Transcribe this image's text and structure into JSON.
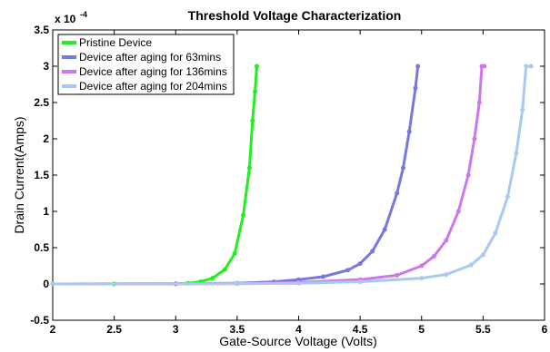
{
  "chart_data": {
    "type": "line",
    "title": "Threshold Voltage Characterization",
    "xlabel": "Gate-Source Voltage (Volts)",
    "ylabel": "Drain Current(Amps)",
    "y_scale_factor": "x 10",
    "y_scale_exponent": "-4",
    "xlim": [
      2,
      6
    ],
    "ylim": [
      -0.5,
      3.5
    ],
    "x_ticks": [
      "2",
      "2.5",
      "3",
      "3.5",
      "4",
      "4.5",
      "5",
      "5.5",
      "6"
    ],
    "y_ticks": [
      "-0.5",
      "0",
      "0.5",
      "1",
      "1.5",
      "2",
      "2.5",
      "3",
      "3.5"
    ],
    "grid": false,
    "legend_position": "top-left",
    "series": [
      {
        "name": "Pristine Device",
        "color": "#22ee22",
        "points": [
          [
            2.0,
            0
          ],
          [
            2.5,
            0
          ],
          [
            3.0,
            0.002
          ],
          [
            3.1,
            0.01
          ],
          [
            3.2,
            0.03
          ],
          [
            3.3,
            0.08
          ],
          [
            3.4,
            0.2
          ],
          [
            3.48,
            0.42
          ],
          [
            3.55,
            0.95
          ],
          [
            3.6,
            1.6
          ],
          [
            3.625,
            2.25
          ],
          [
            3.645,
            2.65
          ],
          [
            3.66,
            3.0
          ]
        ]
      },
      {
        "name": "Device after aging for 63mins",
        "color": "#7777dd",
        "points": [
          [
            2.0,
            0
          ],
          [
            3.0,
            0.002
          ],
          [
            3.5,
            0.01
          ],
          [
            3.8,
            0.03
          ],
          [
            4.0,
            0.06
          ],
          [
            4.2,
            0.1
          ],
          [
            4.4,
            0.19
          ],
          [
            4.5,
            0.28
          ],
          [
            4.6,
            0.45
          ],
          [
            4.7,
            0.75
          ],
          [
            4.8,
            1.25
          ],
          [
            4.85,
            1.6
          ],
          [
            4.9,
            2.1
          ],
          [
            4.95,
            2.7
          ],
          [
            4.97,
            3.0
          ]
        ]
      },
      {
        "name": "Device after aging for 136mins",
        "color": "#cc77ee",
        "points": [
          [
            2.0,
            0
          ],
          [
            3.5,
            0.005
          ],
          [
            4.0,
            0.02
          ],
          [
            4.5,
            0.06
          ],
          [
            4.8,
            0.12
          ],
          [
            5.0,
            0.25
          ],
          [
            5.1,
            0.38
          ],
          [
            5.2,
            0.6
          ],
          [
            5.3,
            1.0
          ],
          [
            5.38,
            1.5
          ],
          [
            5.43,
            2.0
          ],
          [
            5.47,
            2.5
          ],
          [
            5.49,
            3.0
          ],
          [
            5.51,
            3.0
          ]
        ]
      },
      {
        "name": "Device after aging for 204mins",
        "color": "#aac8f0",
        "points": [
          [
            2.0,
            0
          ],
          [
            3.5,
            0.002
          ],
          [
            4.0,
            0.01
          ],
          [
            4.5,
            0.03
          ],
          [
            5.0,
            0.08
          ],
          [
            5.2,
            0.13
          ],
          [
            5.4,
            0.26
          ],
          [
            5.5,
            0.4
          ],
          [
            5.6,
            0.7
          ],
          [
            5.7,
            1.2
          ],
          [
            5.77,
            1.8
          ],
          [
            5.82,
            2.4
          ],
          [
            5.85,
            3.0
          ],
          [
            5.89,
            3.0
          ]
        ]
      }
    ]
  }
}
